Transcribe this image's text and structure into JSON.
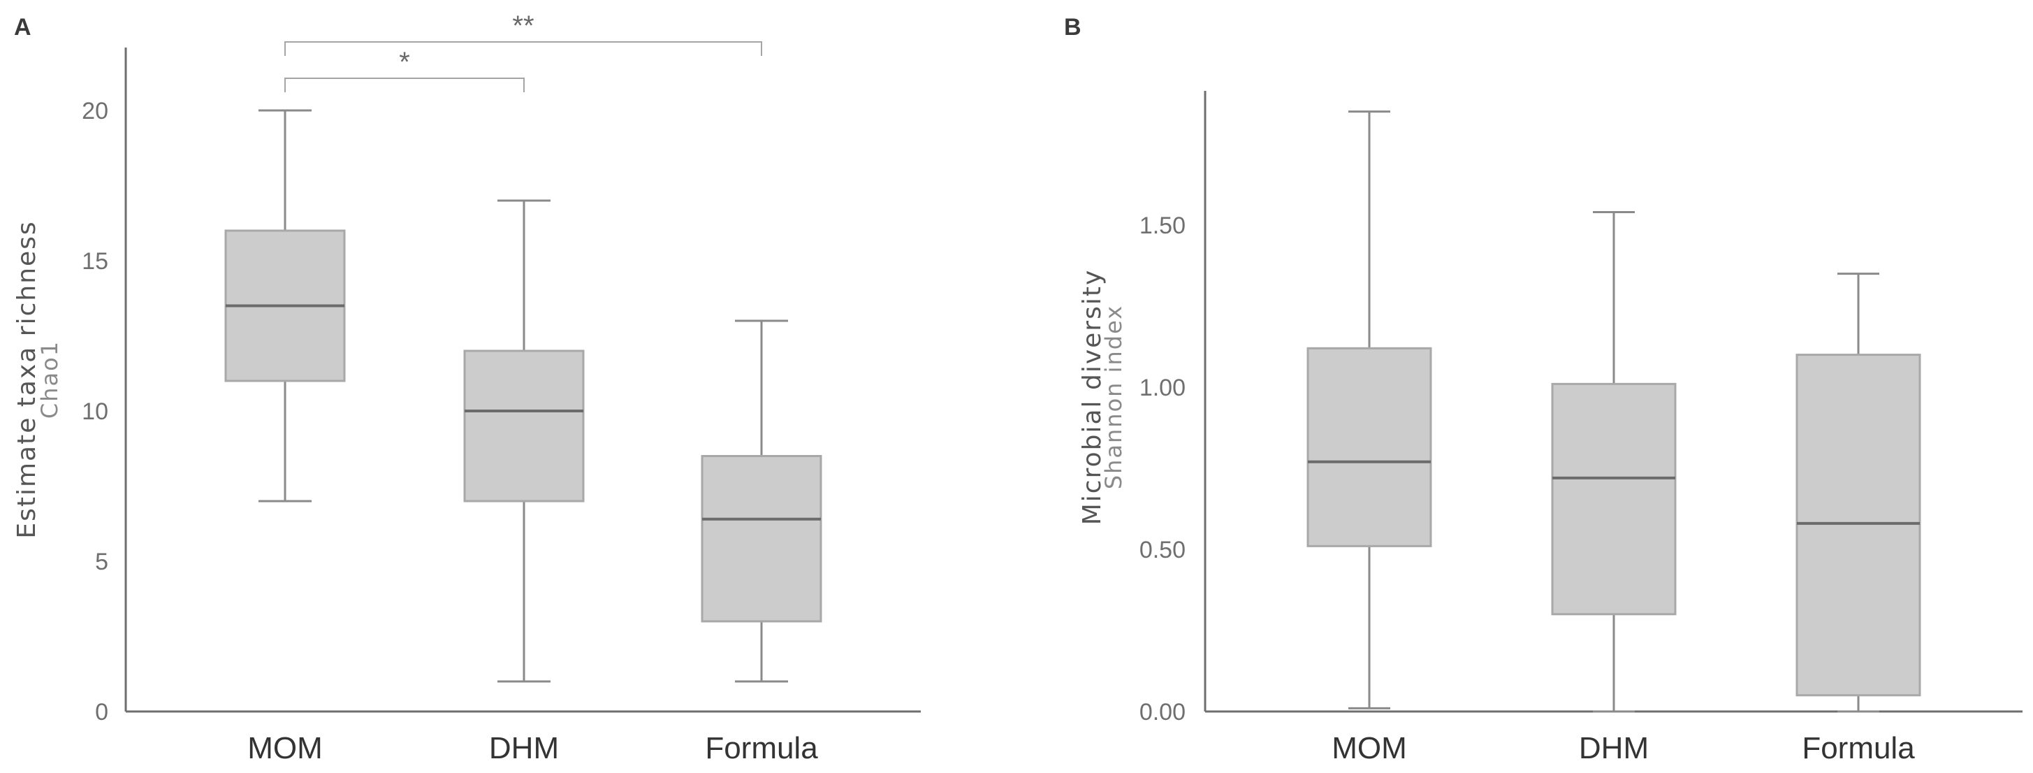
{
  "chart_data": [
    {
      "panel": "A",
      "type": "box",
      "ylabel": "Estimate taxa richness",
      "ylabel_sub": "Chao1",
      "ylim": [
        0,
        22
      ],
      "yticks": [
        0,
        5,
        10,
        15,
        20
      ],
      "ytick_labels": [
        "0",
        "5",
        "10",
        "15",
        "20"
      ],
      "categories": [
        "MOM",
        "DHM",
        "Formula"
      ],
      "boxes": [
        {
          "name": "MOM",
          "whisker_low": 7,
          "q1": 11,
          "median": 13.5,
          "q3": 16,
          "whisker_high": 20
        },
        {
          "name": "DHM",
          "whisker_low": 1,
          "q1": 7,
          "median": 10,
          "q3": 12,
          "whisker_high": 17
        },
        {
          "name": "Formula",
          "whisker_low": 1,
          "q1": 3,
          "median": 6.4,
          "q3": 8.5,
          "whisker_high": 13
        }
      ],
      "significance": [
        {
          "from": "MOM",
          "to": "DHM",
          "label": "*"
        },
        {
          "from": "MOM",
          "to": "Formula",
          "label": "**"
        }
      ],
      "colors": {
        "box": "#cccccc",
        "box_edge": "#a8a8a8",
        "median": "#6b6b6b",
        "whisker": "#8a8a8a",
        "axis": "#6e6e6e"
      }
    },
    {
      "panel": "B",
      "type": "box",
      "ylabel": "Microbial diversity",
      "ylabel_sub": "Shannon index",
      "ylim": [
        0,
        1.9
      ],
      "yticks": [
        0,
        0.5,
        1.0,
        1.5
      ],
      "ytick_labels": [
        "0.00",
        "0.50",
        "1.00",
        "1.50"
      ],
      "categories": [
        "MOM",
        "DHM",
        "Formula"
      ],
      "boxes": [
        {
          "name": "MOM",
          "whisker_low": 0.01,
          "q1": 0.51,
          "median": 0.77,
          "q3": 1.12,
          "whisker_high": 1.85
        },
        {
          "name": "DHM",
          "whisker_low": 0.0,
          "q1": 0.3,
          "median": 0.72,
          "q3": 1.01,
          "whisker_high": 1.54
        },
        {
          "name": "Formula",
          "whisker_low": 0.0,
          "q1": 0.05,
          "median": 0.58,
          "q3": 1.1,
          "whisker_high": 1.35
        }
      ],
      "significance": [],
      "colors": {
        "box": "#cccccc",
        "box_edge": "#a8a8a8",
        "median": "#6b6b6b",
        "whisker": "#8a8a8a",
        "axis": "#6e6e6e"
      }
    }
  ]
}
